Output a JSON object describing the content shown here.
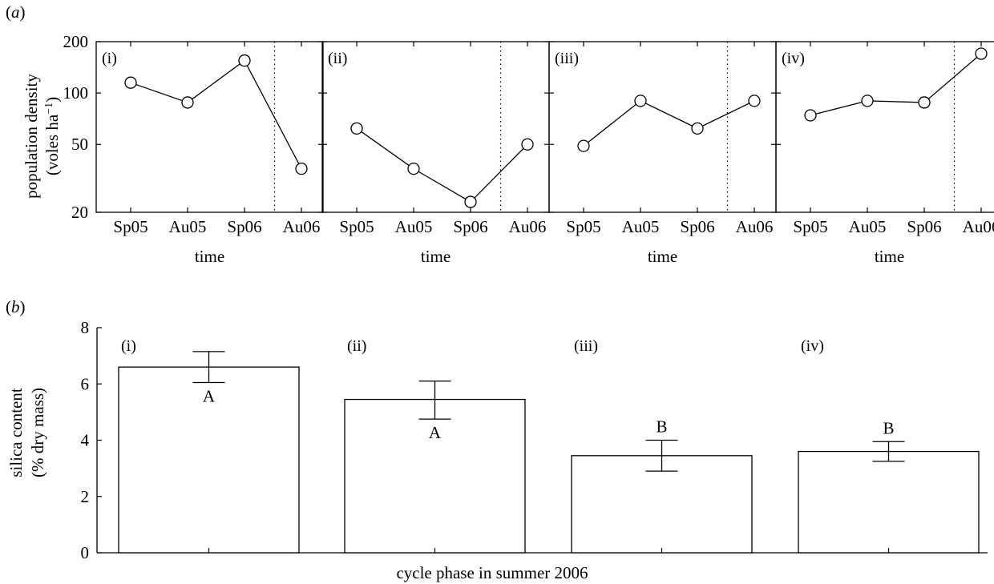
{
  "figure": {
    "panel_a_letter": "a",
    "panel_b_letter": "b",
    "letter_open": "(",
    "letter_close": ")"
  },
  "chart_data": [
    {
      "type": "line",
      "layout": "small-multiples",
      "ylabel_line1": "population density",
      "ylabel_line2": "(voles ha",
      "ylabel_sup": "−1",
      "ylabel_close": ")",
      "xlabel": "time",
      "yscale": "log",
      "ylim": [
        20,
        200
      ],
      "y_ticks": [
        20,
        50,
        100,
        200
      ],
      "categories": [
        "Sp05",
        "Au05",
        "Sp06",
        "Au06"
      ],
      "marker": "open-circle",
      "divider": "dotted vertical line between Sp06 and Au06",
      "panels": [
        {
          "label": "(i)",
          "values": [
            115,
            88,
            155,
            36
          ]
        },
        {
          "label": "(ii)",
          "values": [
            62,
            36,
            23,
            50
          ]
        },
        {
          "label": "(iii)",
          "values": [
            49,
            90,
            62,
            90
          ]
        },
        {
          "label": "(iv)",
          "values": [
            74,
            90,
            88,
            170
          ]
        }
      ]
    },
    {
      "type": "bar",
      "ylabel_line1": "silica content",
      "ylabel_line2": "(% dry mass)",
      "xlabel": "cycle phase in summer 2006",
      "ylim": [
        0,
        8
      ],
      "y_ticks": [
        0,
        2,
        4,
        6,
        8
      ],
      "categories": [
        "(i)",
        "(ii)",
        "(iii)",
        "(iv)"
      ],
      "values": [
        6.6,
        5.45,
        3.45,
        3.6
      ],
      "error_lower": [
        6.05,
        4.75,
        2.9,
        3.25
      ],
      "error_upper": [
        7.15,
        6.1,
        4.0,
        3.95
      ],
      "significance_letters": [
        "A",
        "A",
        "B",
        "B"
      ],
      "significance_letter_position": [
        "below-bar-top",
        "below-bar-top",
        "above-error-bar",
        "above-error-bar"
      ]
    }
  ]
}
